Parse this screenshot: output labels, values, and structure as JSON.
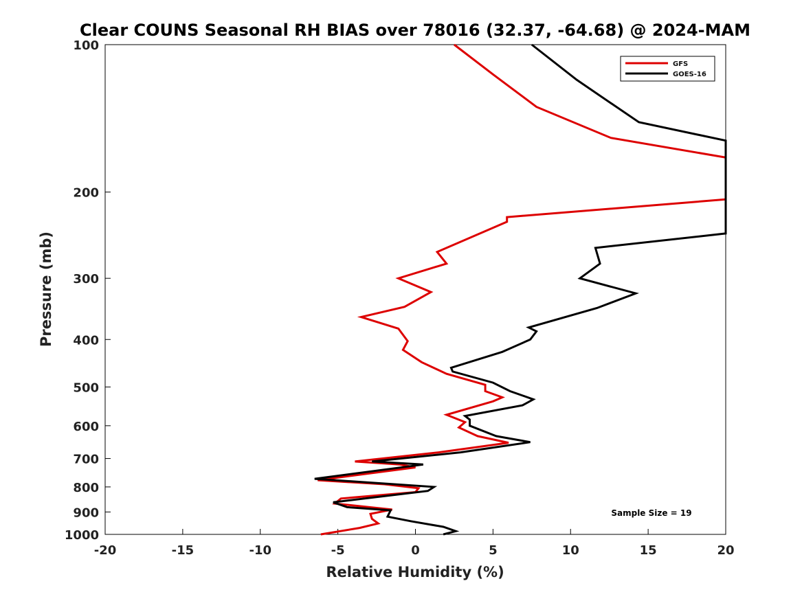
{
  "chart_data": {
    "type": "line",
    "title": "Clear COUNS Seasonal RH BIAS over 78016 (32.37, -64.68) @ 2024-MAM",
    "xlabel": "Relative Humidity (%)",
    "ylabel": "Pressure (mb)",
    "xlim": [
      -20,
      20
    ],
    "ylim": [
      100,
      1000
    ],
    "yscale": "log",
    "x_ticks": [
      -20,
      -15,
      -10,
      -5,
      0,
      5,
      10,
      15,
      20
    ],
    "x_tick_labels": [
      "-20",
      "-15",
      "-10",
      "-5",
      "0",
      "5",
      "10",
      "15",
      "20"
    ],
    "y_ticks": [
      100,
      200,
      300,
      400,
      500,
      600,
      700,
      800,
      900,
      1000
    ],
    "y_tick_labels": [
      "100",
      "200",
      "300",
      "400",
      "500",
      "600",
      "700",
      "800",
      "900",
      "1000"
    ],
    "grid": false,
    "legend_position": "top-right",
    "annotation": "Sample Size = 19",
    "series": [
      {
        "name": "GFS",
        "color": "#dd0000",
        "points": [
          [
            2.5,
            100
          ],
          [
            5.0,
            115
          ],
          [
            7.8,
            134
          ],
          [
            12.6,
            155
          ],
          [
            20,
            170
          ],
          [
            20,
            207
          ],
          [
            5.9,
            225
          ],
          [
            5.9,
            230
          ],
          [
            1.4,
            265
          ],
          [
            2.0,
            280
          ],
          [
            -1.1,
            300
          ],
          [
            1.0,
            320
          ],
          [
            -0.7,
            343
          ],
          [
            -3.5,
            360
          ],
          [
            -1.1,
            380
          ],
          [
            -0.5,
            403
          ],
          [
            -0.8,
            420
          ],
          [
            0.4,
            445
          ],
          [
            2.0,
            470
          ],
          [
            4.5,
            495
          ],
          [
            4.5,
            510
          ],
          [
            5.6,
            525
          ],
          [
            5.0,
            535
          ],
          [
            2.0,
            570
          ],
          [
            3.2,
            590
          ],
          [
            2.8,
            605
          ],
          [
            4.0,
            630
          ],
          [
            6.0,
            650
          ],
          [
            1.5,
            680
          ],
          [
            -3.9,
            710
          ],
          [
            -1.0,
            720
          ],
          [
            0.0,
            730
          ],
          [
            -6.3,
            775
          ],
          [
            -2.0,
            790
          ],
          [
            0.2,
            805
          ],
          [
            0.0,
            820
          ],
          [
            -4.8,
            845
          ],
          [
            -5.2,
            865
          ],
          [
            -1.5,
            890
          ],
          [
            -2.9,
            908
          ],
          [
            -2.8,
            930
          ],
          [
            -2.4,
            950
          ],
          [
            -3.6,
            970
          ],
          [
            -6.1,
            1000
          ]
        ]
      },
      {
        "name": "GOES-16",
        "color": "#000000",
        "points": [
          [
            7.5,
            100
          ],
          [
            10.4,
            118
          ],
          [
            14.4,
            144
          ],
          [
            20,
            157
          ],
          [
            20,
            243
          ],
          [
            11.6,
            260
          ],
          [
            11.9,
            280
          ],
          [
            10.6,
            300
          ],
          [
            14.2,
            322
          ],
          [
            11.7,
            345
          ],
          [
            7.3,
            378
          ],
          [
            7.8,
            385
          ],
          [
            7.4,
            400
          ],
          [
            5.6,
            424
          ],
          [
            2.3,
            457
          ],
          [
            2.4,
            465
          ],
          [
            5.0,
            490
          ],
          [
            6.1,
            510
          ],
          [
            7.6,
            530
          ],
          [
            6.9,
            545
          ],
          [
            3.2,
            573
          ],
          [
            3.5,
            583
          ],
          [
            3.5,
            600
          ],
          [
            5.2,
            630
          ],
          [
            7.4,
            648
          ],
          [
            2.9,
            680
          ],
          [
            -2.8,
            710
          ],
          [
            0.5,
            720
          ],
          [
            -6.5,
            770
          ],
          [
            1.2,
            800
          ],
          [
            0.8,
            815
          ],
          [
            -5.3,
            860
          ],
          [
            -4.4,
            880
          ],
          [
            -1.6,
            893
          ],
          [
            -1.8,
            920
          ],
          [
            -0.3,
            940
          ],
          [
            1.8,
            965
          ],
          [
            2.6,
            985
          ],
          [
            1.8,
            1000
          ]
        ]
      }
    ]
  }
}
